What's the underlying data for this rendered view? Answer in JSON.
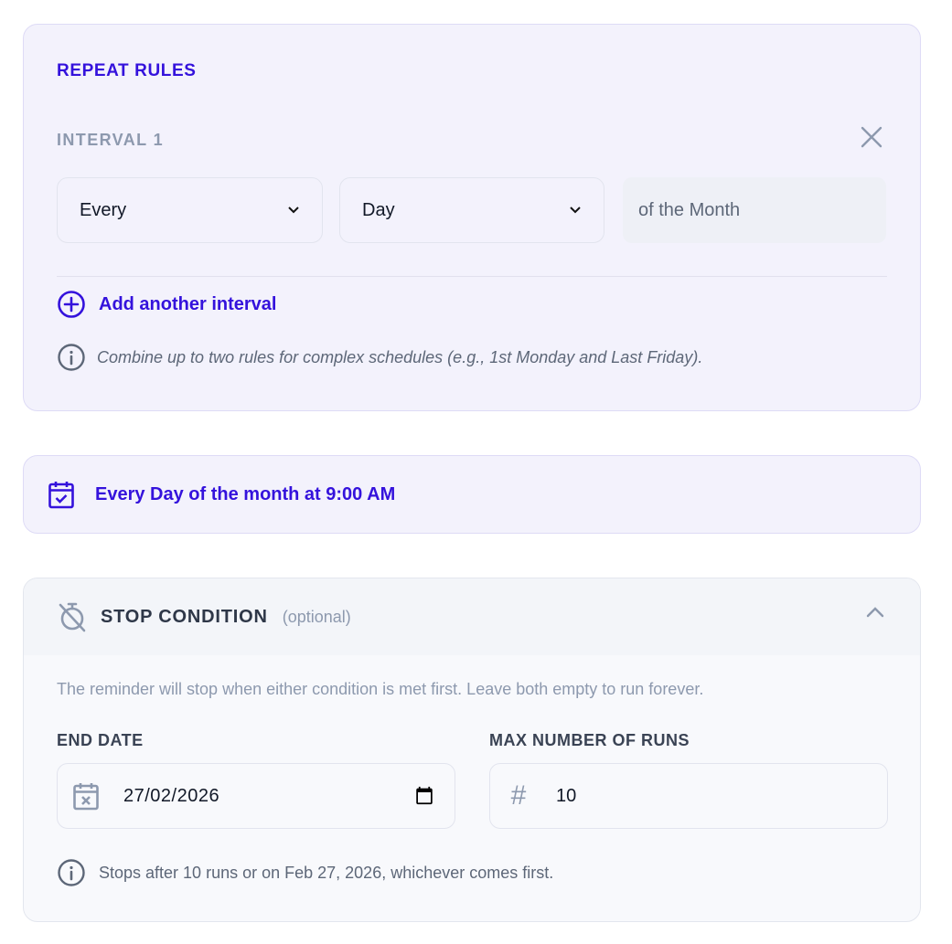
{
  "repeat_rules": {
    "title": "REPEAT RULES",
    "interval_label": "INTERVAL 1",
    "frequency_select": "Every",
    "unit_select": "Day",
    "suffix": "of the Month",
    "add_interval": "Add another interval",
    "note": "Combine up to two rules for complex schedules (e.g., 1st Monday and Last Friday)."
  },
  "summary": {
    "text": "Every Day of the month at 9:00 AM"
  },
  "stop_condition": {
    "title": "STOP CONDITION",
    "optional": "(optional)",
    "description": "The reminder will stop when either condition is met first. Leave both empty to run forever.",
    "end_date_label": "END DATE",
    "end_date_value": "2026-02-27",
    "end_date_display": "27/02/2026",
    "max_runs_label": "MAX NUMBER OF RUNS",
    "max_runs_value": "10",
    "info": "Stops after 10 runs or on Feb 27, 2026, whichever comes first."
  },
  "colors": {
    "accent": "#3412dc",
    "muted": "#8d99ae"
  }
}
